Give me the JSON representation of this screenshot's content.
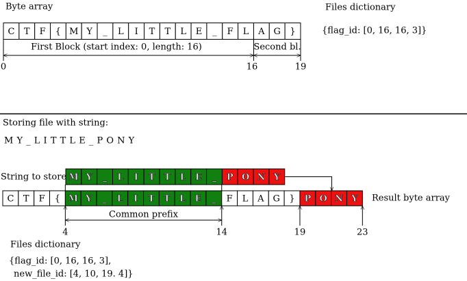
{
  "top": {
    "title": "Byte array",
    "cells": [
      "C",
      "T",
      "F",
      "{",
      "M",
      "Y",
      "_",
      "L",
      "I",
      "T",
      "T",
      "L",
      "E",
      "_",
      "F",
      "L",
      "A",
      "G",
      "}"
    ],
    "first_block": "First Block (start index: 0, length: 16)",
    "second_block": "Second bl.",
    "indices": [
      0,
      16,
      19
    ]
  },
  "files_top": {
    "title": "Files dictionary",
    "entry": "{flag_id: [0, 16, 16, 3]}"
  },
  "bottom": {
    "heading": "Storing file with string:",
    "string": "M Y _ L I T T L E _ P O N Y",
    "string_label": "String to store",
    "string_common": [
      "M",
      "Y",
      "_",
      "L",
      "I",
      "T",
      "T",
      "L",
      "E",
      "_"
    ],
    "string_new": [
      "P",
      "O",
      "N",
      "Y"
    ],
    "result_prefix": [
      "C",
      "T",
      "F",
      "{"
    ],
    "result_common": [
      "M",
      "Y",
      "_",
      "L",
      "I",
      "T",
      "T",
      "L",
      "E",
      "_"
    ],
    "result_rest": [
      "F",
      "L",
      "A",
      "G",
      "}"
    ],
    "result_new": [
      "P",
      "O",
      "N",
      "Y"
    ],
    "result_label": "Result byte array",
    "common_prefix": "Common prefix",
    "indices": [
      4,
      14,
      19,
      23
    ]
  },
  "files_bottom": {
    "title": "Files dictionary",
    "lines": [
      "{flag_id: [0, 16, 16, 3],",
      "new_file_id: [4, 10, 19. 4]}"
    ]
  }
}
